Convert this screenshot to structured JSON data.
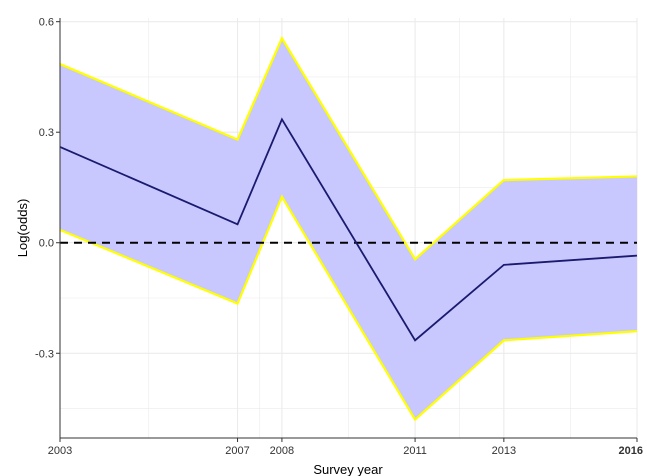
{
  "chart_data": {
    "type": "line",
    "title": "",
    "xlabel": "Survey year",
    "ylabel": "Log(odds)",
    "x": [
      2003,
      2007,
      2008,
      2011,
      2013,
      2016
    ],
    "x_tick_labels": [
      "2003",
      "2007",
      "2008",
      "2011",
      "2013",
      "2016"
    ],
    "xlim": [
      2003,
      2016
    ],
    "y_ticks": [
      0.6,
      0.3,
      0.0,
      -0.3
    ],
    "y_tick_labels": [
      "0.6",
      "0.3",
      "0.0",
      "-0.3"
    ],
    "ylim": [
      -0.53,
      0.61
    ],
    "series": [
      {
        "values": [
          0.26,
          0.05,
          0.335,
          -0.265,
          -0.06,
          -0.035
        ]
      }
    ],
    "ci_upper": [
      0.485,
      0.28,
      0.555,
      -0.045,
      0.17,
      0.18
    ],
    "ci_lower": [
      0.035,
      -0.165,
      0.125,
      -0.48,
      -0.265,
      -0.24
    ],
    "reference_line": {
      "y": 0,
      "style": "dashed"
    },
    "grid": true,
    "colors": {
      "line": "#1a1a6e",
      "ribbon_fill": "#c8c8ff",
      "ribbon_border": "#ffff00",
      "reference": "#000000",
      "grid": "#ebebeb"
    }
  }
}
